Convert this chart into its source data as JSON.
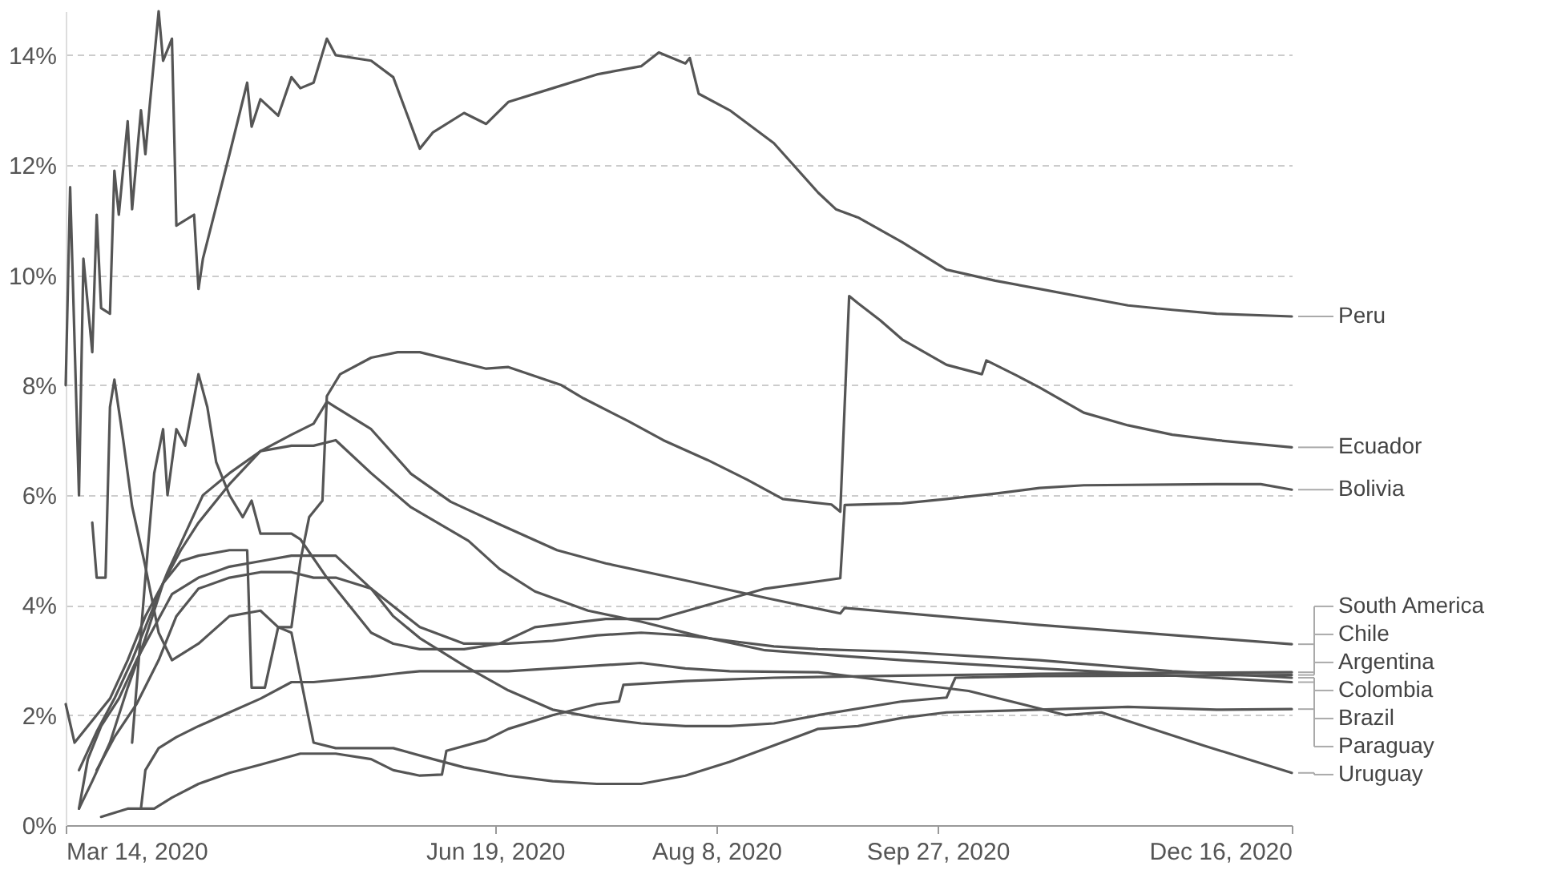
{
  "chart_data": {
    "type": "line",
    "ylim": [
      0,
      14.8
    ],
    "yticks": [
      {
        "value": 0,
        "label": "0%"
      },
      {
        "value": 2,
        "label": "2%"
      },
      {
        "value": 4,
        "label": "4%"
      },
      {
        "value": 6,
        "label": "6%"
      },
      {
        "value": 8,
        "label": "8%"
      },
      {
        "value": 10,
        "label": "10%"
      },
      {
        "value": 12,
        "label": "12%"
      },
      {
        "value": 14,
        "label": "14%"
      }
    ],
    "xlim": [
      "2020-03-14",
      "2020-12-16"
    ],
    "xticks": [
      {
        "value": "2020-03-14",
        "label": "Mar 14, 2020"
      },
      {
        "value": "2020-06-19",
        "label": "Jun 19, 2020"
      },
      {
        "value": "2020-08-08",
        "label": "Aug 8, 2020"
      },
      {
        "value": "2020-09-27",
        "label": "Sep 27, 2020"
      },
      {
        "value": "2020-12-16",
        "label": "Dec 16, 2020"
      }
    ],
    "grid": "y",
    "line_style": "solid",
    "series": [
      {
        "name": "Peru",
        "color": "#555555",
        "x": [
          "2020-03-14",
          "2020-03-15",
          "2020-03-17",
          "2020-03-18",
          "2020-03-20",
          "2020-03-21",
          "2020-03-22",
          "2020-03-24",
          "2020-03-25",
          "2020-03-26",
          "2020-03-28",
          "2020-03-29",
          "2020-03-31",
          "2020-04-01",
          "2020-04-02",
          "2020-04-04",
          "2020-04-05",
          "2020-04-07",
          "2020-04-08",
          "2020-04-12",
          "2020-04-13",
          "2020-04-14",
          "2020-04-20",
          "2020-04-24",
          "2020-04-25",
          "2020-04-27",
          "2020-05-01",
          "2020-05-04",
          "2020-05-06",
          "2020-05-09",
          "2020-05-12",
          "2020-05-14",
          "2020-05-22",
          "2020-05-27",
          "2020-06-02",
          "2020-06-05",
          "2020-06-12",
          "2020-06-17",
          "2020-06-22",
          "2020-07-02",
          "2020-07-12",
          "2020-07-22",
          "2020-07-26",
          "2020-08-01",
          "2020-08-02",
          "2020-08-04",
          "2020-08-11",
          "2020-08-21",
          "2020-08-31",
          "2020-09-04",
          "2020-09-09",
          "2020-09-19",
          "2020-09-29",
          "2020-10-10",
          "2020-10-20",
          "2020-10-30",
          "2020-11-09",
          "2020-11-19",
          "2020-11-29",
          "2020-12-16"
        ],
        "values": [
          8.0,
          11.6,
          6.0,
          10.3,
          8.6,
          11.1,
          9.4,
          9.3,
          11.9,
          11.1,
          12.8,
          11.2,
          13.0,
          12.2,
          13.1,
          14.8,
          13.9,
          14.3,
          10.9,
          11.1,
          9.75,
          10.3,
          12.2,
          13.5,
          12.7,
          13.2,
          12.9,
          13.6,
          13.4,
          13.5,
          14.3,
          14.0,
          13.9,
          13.6,
          12.3,
          12.6,
          12.95,
          12.75,
          13.15,
          13.4,
          13.65,
          13.8,
          14.05,
          13.85,
          13.95,
          13.3,
          13.0,
          12.4,
          11.5,
          11.2,
          11.05,
          10.6,
          10.1,
          9.9,
          9.75,
          9.6,
          9.45,
          9.37,
          9.3,
          9.25
        ]
      },
      {
        "name": "Ecuador",
        "color": "#555555",
        "x": [
          "2020-03-14",
          "2020-03-16",
          "2020-03-20",
          "2020-03-24",
          "2020-03-28",
          "2020-04-01",
          "2020-04-05",
          "2020-04-09",
          "2020-04-13",
          "2020-04-20",
          "2020-04-24",
          "2020-04-25",
          "2020-04-28",
          "2020-05-01",
          "2020-05-04",
          "2020-05-06",
          "2020-05-08",
          "2020-05-11",
          "2020-05-12",
          "2020-05-15",
          "2020-05-22",
          "2020-05-28",
          "2020-06-02",
          "2020-06-17",
          "2020-06-22",
          "2020-07-04",
          "2020-07-09",
          "2020-07-19",
          "2020-07-27",
          "2020-08-06",
          "2020-08-15",
          "2020-08-23",
          "2020-09-03",
          "2020-09-05",
          "2020-09-07",
          "2020-09-09",
          "2020-09-14",
          "2020-09-19",
          "2020-09-29",
          "2020-10-07",
          "2020-10-08",
          "2020-10-15",
          "2020-10-20",
          "2020-10-30",
          "2020-11-09",
          "2020-11-19",
          "2020-11-29",
          "2020-12-16"
        ],
        "values": [
          2.2,
          1.5,
          1.9,
          2.3,
          3.0,
          3.8,
          4.4,
          4.8,
          4.9,
          5.0,
          5.0,
          2.5,
          2.5,
          3.6,
          3.6,
          4.8,
          5.6,
          5.9,
          7.8,
          8.2,
          8.5,
          8.6,
          8.6,
          8.3,
          8.33,
          8.0,
          7.76,
          7.35,
          7.0,
          6.64,
          6.28,
          5.93,
          5.83,
          5.7,
          9.62,
          9.49,
          9.18,
          8.83,
          8.37,
          8.2,
          8.45,
          8.17,
          7.96,
          7.5,
          7.27,
          7.1,
          7.0,
          6.87
        ]
      },
      {
        "name": "Bolivia",
        "color": "#555555",
        "x": [
          "2020-03-29",
          "2020-04-01",
          "2020-04-03",
          "2020-04-05",
          "2020-04-06",
          "2020-04-08",
          "2020-04-10",
          "2020-04-13",
          "2020-04-15",
          "2020-04-17",
          "2020-04-20",
          "2020-04-23",
          "2020-04-25",
          "2020-04-27",
          "2020-05-04",
          "2020-05-06",
          "2020-05-12",
          "2020-05-18",
          "2020-05-22",
          "2020-05-27",
          "2020-06-02",
          "2020-06-12",
          "2020-06-20",
          "2020-06-28",
          "2020-07-14",
          "2020-07-26",
          "2020-08-08",
          "2020-08-19",
          "2020-09-05",
          "2020-09-06",
          "2020-09-19",
          "2020-09-29",
          "2020-10-10",
          "2020-10-20",
          "2020-10-30",
          "2020-11-29",
          "2020-12-09",
          "2020-12-16"
        ],
        "values": [
          1.5,
          4.5,
          6.4,
          7.2,
          6.0,
          7.2,
          6.9,
          8.2,
          7.6,
          6.6,
          6.0,
          5.6,
          5.9,
          5.3,
          5.3,
          5.2,
          4.5,
          3.9,
          3.5,
          3.3,
          3.2,
          3.2,
          3.3,
          3.6,
          3.75,
          3.75,
          4.05,
          4.3,
          4.49,
          5.82,
          5.85,
          5.93,
          6.03,
          6.13,
          6.18,
          6.2,
          6.2,
          6.1
        ]
      },
      {
        "name": "South America",
        "color": "#555555",
        "x": [
          "2020-03-17",
          "2020-03-21",
          "2020-03-25",
          "2020-03-29",
          "2020-04-02",
          "2020-04-06",
          "2020-04-10",
          "2020-04-14",
          "2020-04-20",
          "2020-04-27",
          "2020-05-04",
          "2020-05-09",
          "2020-05-12",
          "2020-05-14",
          "2020-05-22",
          "2020-05-31",
          "2020-06-09",
          "2020-06-20",
          "2020-07-03",
          "2020-07-14",
          "2020-08-01",
          "2020-08-21",
          "2020-09-05",
          "2020-09-06",
          "2020-10-20",
          "2020-12-16"
        ],
        "values": [
          1.0,
          1.7,
          2.3,
          3.0,
          3.8,
          4.6,
          5.3,
          6.0,
          6.4,
          6.8,
          7.1,
          7.3,
          7.7,
          7.6,
          7.2,
          6.39,
          5.88,
          5.47,
          5.0,
          4.76,
          4.45,
          4.1,
          3.85,
          3.95,
          3.64,
          3.29
        ]
      },
      {
        "name": "Chile",
        "color": "#555555",
        "x": [
          "2020-03-22",
          "2020-03-28",
          "2020-04-03",
          "2020-04-07",
          "2020-04-13",
          "2020-04-20",
          "2020-04-27",
          "2020-05-06",
          "2020-05-14",
          "2020-05-22",
          "2020-05-27",
          "2020-06-02",
          "2020-06-07",
          "2020-06-08",
          "2020-06-17",
          "2020-06-22",
          "2020-07-02",
          "2020-07-12",
          "2020-07-17",
          "2020-07-18",
          "2020-08-01",
          "2020-08-21",
          "2020-09-19",
          "2020-10-20",
          "2020-11-19",
          "2020-12-16"
        ],
        "values": [
          0.15,
          0.3,
          0.3,
          0.5,
          0.75,
          0.95,
          1.1,
          1.3,
          1.3,
          1.2,
          1.0,
          0.9,
          0.92,
          1.35,
          1.55,
          1.75,
          2.0,
          2.2,
          2.25,
          2.55,
          2.62,
          2.68,
          2.72,
          2.75,
          2.77,
          2.78
        ]
      },
      {
        "name": "Argentina",
        "color": "#555555",
        "x": [
          "2020-03-17",
          "2020-03-19",
          "2020-03-22",
          "2020-03-26",
          "2020-03-30",
          "2020-04-03",
          "2020-04-07",
          "2020-04-13",
          "2020-04-20",
          "2020-04-27",
          "2020-05-04",
          "2020-05-14",
          "2020-05-22",
          "2020-05-27",
          "2020-06-02",
          "2020-06-12",
          "2020-06-22",
          "2020-07-02",
          "2020-07-12",
          "2020-07-22",
          "2020-08-01",
          "2020-08-11",
          "2020-08-21",
          "2020-08-31",
          "2020-09-19",
          "2020-09-29",
          "2020-10-01",
          "2020-10-20",
          "2020-11-19",
          "2020-12-16"
        ],
        "values": [
          0.3,
          1.2,
          1.8,
          2.3,
          3.0,
          3.6,
          4.2,
          4.5,
          4.7,
          4.8,
          4.9,
          4.9,
          4.3,
          3.8,
          3.4,
          2.9,
          2.45,
          2.1,
          1.95,
          1.85,
          1.8,
          1.8,
          1.85,
          2.0,
          2.25,
          2.32,
          2.68,
          2.71,
          2.72,
          2.73
        ]
      },
      {
        "name": "Colombia",
        "color": "#555555",
        "x": [
          "2020-03-21",
          "2020-03-25",
          "2020-03-30",
          "2020-04-04",
          "2020-04-08",
          "2020-04-13",
          "2020-04-20",
          "2020-04-27",
          "2020-05-04",
          "2020-05-09",
          "2020-05-14",
          "2020-05-22",
          "2020-06-02",
          "2020-06-12",
          "2020-06-22",
          "2020-07-02",
          "2020-07-12",
          "2020-07-22",
          "2020-08-01",
          "2020-08-11",
          "2020-08-21",
          "2020-08-31",
          "2020-09-19",
          "2020-10-20",
          "2020-11-19",
          "2020-12-16"
        ],
        "values": [
          1.0,
          1.6,
          2.2,
          3.0,
          3.8,
          4.3,
          4.5,
          4.6,
          4.6,
          4.5,
          4.5,
          4.3,
          3.6,
          3.3,
          3.3,
          3.35,
          3.45,
          3.5,
          3.45,
          3.35,
          3.25,
          3.2,
          3.15,
          3.0,
          2.8,
          2.68
        ]
      },
      {
        "name": "Brazil",
        "color": "#555555",
        "x": [
          "2020-03-17",
          "2020-03-20",
          "2020-03-24",
          "2020-03-28",
          "2020-04-01",
          "2020-04-05",
          "2020-04-09",
          "2020-04-13",
          "2020-04-20",
          "2020-04-27",
          "2020-05-04",
          "2020-05-09",
          "2020-05-14",
          "2020-05-22",
          "2020-05-31",
          "2020-06-13",
          "2020-06-20",
          "2020-06-28",
          "2020-07-10",
          "2020-07-22",
          "2020-08-04",
          "2020-08-19",
          "2020-09-05",
          "2020-09-19",
          "2020-10-20",
          "2020-11-19",
          "2020-12-16"
        ],
        "values": [
          0.3,
          0.8,
          1.5,
          2.5,
          3.4,
          4.4,
          5.0,
          5.5,
          6.2,
          6.8,
          6.9,
          6.9,
          7.0,
          6.4,
          5.78,
          5.17,
          4.66,
          4.25,
          3.9,
          3.7,
          3.44,
          3.18,
          3.08,
          3.0,
          2.85,
          2.72,
          2.6
        ]
      },
      {
        "name": "Paraguay",
        "color": "#555555",
        "x": [
          "2020-03-20",
          "2020-03-21",
          "2020-03-23",
          "2020-03-24",
          "2020-03-25",
          "2020-03-27",
          "2020-03-29",
          "2020-04-01",
          "2020-04-04",
          "2020-04-07",
          "2020-04-13",
          "2020-04-20",
          "2020-04-27",
          "2020-05-01",
          "2020-05-04",
          "2020-05-09",
          "2020-05-14",
          "2020-05-27",
          "2020-06-05",
          "2020-06-12",
          "2020-06-22",
          "2020-07-02",
          "2020-07-12",
          "2020-07-22",
          "2020-08-01",
          "2020-08-11",
          "2020-08-21",
          "2020-08-31",
          "2020-09-09",
          "2020-09-19",
          "2020-09-29",
          "2020-10-20",
          "2020-11-09",
          "2020-11-29",
          "2020-12-16"
        ],
        "values": [
          5.5,
          4.5,
          4.5,
          7.6,
          8.1,
          7.0,
          5.8,
          4.7,
          3.5,
          3.0,
          3.3,
          3.8,
          3.9,
          3.6,
          3.5,
          1.5,
          1.4,
          1.4,
          1.2,
          1.05,
          0.9,
          0.8,
          0.75,
          0.75,
          0.9,
          1.15,
          1.45,
          1.75,
          1.8,
          1.95,
          2.05,
          2.1,
          2.15,
          2.1,
          2.11
        ]
      },
      {
        "name": "Uruguay",
        "color": "#555555",
        "x": [
          "2020-03-31",
          "2020-04-01",
          "2020-04-04",
          "2020-04-08",
          "2020-04-13",
          "2020-04-20",
          "2020-04-27",
          "2020-05-04",
          "2020-05-09",
          "2020-05-22",
          "2020-05-27",
          "2020-06-02",
          "2020-06-12",
          "2020-06-22",
          "2020-07-02",
          "2020-07-12",
          "2020-07-22",
          "2020-08-01",
          "2020-08-11",
          "2020-08-31",
          "2020-09-18",
          "2020-10-04",
          "2020-10-26",
          "2020-11-03",
          "2020-11-26",
          "2020-12-16"
        ],
        "values": [
          0.3,
          1.0,
          1.4,
          1.6,
          1.8,
          2.05,
          2.3,
          2.6,
          2.6,
          2.7,
          2.75,
          2.8,
          2.8,
          2.8,
          2.85,
          2.9,
          2.95,
          2.85,
          2.8,
          2.78,
          2.6,
          2.44,
          2.0,
          2.05,
          1.45,
          0.95
        ]
      }
    ]
  }
}
